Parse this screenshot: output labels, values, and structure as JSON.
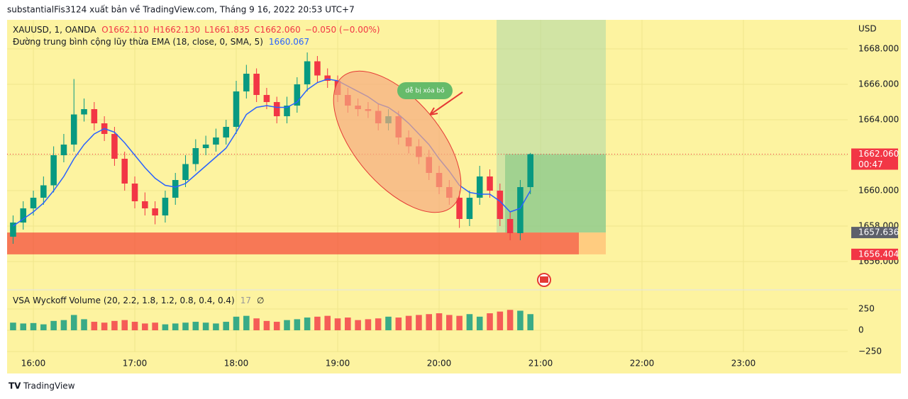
{
  "chart_data": {
    "type": "candlestick",
    "header": "substantialFis3124 xuất bản về TradingView.com, Tháng 9 16, 2022 20:53 UTC+7",
    "symbol": "XAUUSD, 1, OANDA",
    "ohlc_labels": [
      "O1662.110",
      "H1662.130",
      "L1661.835",
      "C1662.060"
    ],
    "change": "−0.050 (−0.00%)",
    "currency": "USD",
    "up_color": "#089981",
    "down_color": "#f23645",
    "background": "#fdf3a0",
    "x": [
      15.8,
      15.9,
      16.0,
      16.1,
      16.2,
      16.3,
      16.4,
      16.5,
      16.6,
      16.7,
      16.8,
      16.9,
      17.0,
      17.1,
      17.2,
      17.3,
      17.4,
      17.5,
      17.6,
      17.7,
      17.8,
      17.9,
      18.0,
      18.1,
      18.2,
      18.3,
      18.4,
      18.5,
      18.6,
      18.7,
      18.8,
      18.9,
      19.0,
      19.1,
      19.2,
      19.3,
      19.4,
      19.5,
      19.6,
      19.7,
      19.8,
      19.9,
      20.0,
      20.1,
      20.2,
      20.3,
      20.4,
      20.5,
      20.6,
      20.7,
      20.8,
      20.9
    ],
    "open": [
      1657.4,
      1658.2,
      1659.0,
      1659.6,
      1660.3,
      1662.0,
      1662.6,
      1664.3,
      1664.6,
      1663.8,
      1663.2,
      1661.8,
      1660.4,
      1659.4,
      1659.0,
      1658.6,
      1659.6,
      1660.6,
      1661.5,
      1662.4,
      1662.6,
      1663.0,
      1663.6,
      1665.6,
      1666.6,
      1665.4,
      1665.0,
      1664.2,
      1664.8,
      1666.0,
      1667.3,
      1666.5,
      1666.2,
      1665.4,
      1664.8,
      1664.6,
      1664.5,
      1663.8,
      1664.2,
      1663.0,
      1662.5,
      1661.9,
      1661.0,
      1660.2,
      1659.6,
      1658.4,
      1659.6,
      1660.8,
      1660.0,
      1658.4,
      1657.6,
      1660.2
    ],
    "high": [
      1658.6,
      1659.4,
      1660.0,
      1660.8,
      1662.5,
      1663.2,
      1666.3,
      1665.2,
      1665.0,
      1664.2,
      1663.6,
      1662.2,
      1660.8,
      1659.9,
      1659.4,
      1660.0,
      1661.0,
      1662.0,
      1662.9,
      1663.1,
      1663.5,
      1664.0,
      1666.2,
      1667.1,
      1666.9,
      1665.8,
      1665.3,
      1665.3,
      1666.4,
      1667.8,
      1667.6,
      1666.9,
      1666.5,
      1665.8,
      1665.2,
      1665.0,
      1664.9,
      1664.6,
      1664.5,
      1663.4,
      1662.9,
      1662.3,
      1661.4,
      1660.6,
      1660.0,
      1660.0,
      1661.4,
      1661.2,
      1660.4,
      1658.8,
      1660.6,
      1662.13
    ],
    "low": [
      1657.0,
      1657.8,
      1658.6,
      1659.2,
      1659.9,
      1661.6,
      1662.2,
      1663.9,
      1663.4,
      1662.8,
      1661.4,
      1660.0,
      1659.0,
      1658.6,
      1658.1,
      1658.2,
      1659.2,
      1660.2,
      1661.1,
      1662.0,
      1662.2,
      1662.6,
      1663.2,
      1665.2,
      1665.0,
      1664.6,
      1663.8,
      1663.8,
      1664.4,
      1665.6,
      1666.1,
      1665.8,
      1665.0,
      1664.4,
      1664.2,
      1664.1,
      1663.4,
      1663.4,
      1662.6,
      1662.1,
      1661.5,
      1660.6,
      1659.8,
      1659.2,
      1657.9,
      1658.0,
      1659.2,
      1659.6,
      1658.0,
      1657.2,
      1657.2,
      1659.8
    ],
    "close": [
      1658.2,
      1659.0,
      1659.6,
      1660.3,
      1662.0,
      1662.6,
      1664.3,
      1664.6,
      1663.8,
      1663.2,
      1661.8,
      1660.4,
      1659.4,
      1659.0,
      1658.6,
      1659.6,
      1660.6,
      1661.5,
      1662.4,
      1662.6,
      1663.0,
      1663.6,
      1665.6,
      1666.6,
      1665.4,
      1665.0,
      1664.2,
      1664.8,
      1666.0,
      1667.3,
      1666.5,
      1666.2,
      1665.4,
      1664.8,
      1664.6,
      1664.5,
      1663.8,
      1664.2,
      1663.0,
      1662.5,
      1661.9,
      1661.0,
      1660.2,
      1659.6,
      1658.4,
      1659.6,
      1660.8,
      1660.0,
      1658.4,
      1657.6,
      1660.2,
      1662.06
    ],
    "series": [
      {
        "name": "Đường trung bình cộng lũy thừa EMA (18, close, 0, SMA, 5)",
        "color": "#2962ff",
        "last_label": "1660.067",
        "values": [
          1658.0,
          1658.4,
          1658.8,
          1659.3,
          1660.0,
          1660.8,
          1661.8,
          1662.6,
          1663.2,
          1663.5,
          1663.3,
          1662.7,
          1662.0,
          1661.3,
          1660.7,
          1660.3,
          1660.2,
          1660.4,
          1660.9,
          1661.4,
          1661.9,
          1662.4,
          1663.3,
          1664.3,
          1664.7,
          1664.8,
          1664.7,
          1664.7,
          1665.0,
          1665.7,
          1666.1,
          1666.3,
          1666.2,
          1665.9,
          1665.6,
          1665.3,
          1664.9,
          1664.7,
          1664.3,
          1663.8,
          1663.2,
          1662.6,
          1661.8,
          1661.1,
          1660.3,
          1659.9,
          1659.8,
          1659.8,
          1659.4,
          1658.8,
          1659.0,
          1660.0
        ]
      }
    ],
    "xlim": [
      15.741,
      24.028
    ],
    "xticks": [
      {
        "value": 16,
        "label": "16:00"
      },
      {
        "value": 17,
        "label": "17:00"
      },
      {
        "value": 18,
        "label": "18:00"
      },
      {
        "value": 19,
        "label": "19:00"
      },
      {
        "value": 20,
        "label": "20:00"
      },
      {
        "value": 21,
        "label": "21:00"
      },
      {
        "value": 22,
        "label": "22:00"
      },
      {
        "value": 23,
        "label": "23:00"
      }
    ],
    "ylim": [
      1654.44,
      1669.64
    ],
    "yticks": [
      {
        "value": 1656,
        "label": "1656.000"
      },
      {
        "value": 1658,
        "label": "1658.000"
      },
      {
        "value": 1660,
        "label": "1660.000"
      },
      {
        "value": 1662,
        "label": "1662.000"
      },
      {
        "value": 1664,
        "label": "1664.000"
      },
      {
        "value": 1666,
        "label": "1666.000"
      },
      {
        "value": 1668,
        "label": "1668.000"
      }
    ],
    "grid": true,
    "price_labels": [
      {
        "value": 1662.06,
        "label": "1662.060",
        "countdown": "00:47",
        "color": "#f23645"
      },
      {
        "value": 1657.636,
        "label": "1657.636",
        "color": "#5d606b"
      },
      {
        "value": 1656.404,
        "label": "1656.404",
        "color": "#f23645"
      }
    ],
    "annotation": "dễ bị xóa bỏ",
    "volume": {
      "title": "VSA Wyckoff Volume (20, 2.2, 1.8, 1.2, 0.8, 0.4, 0.4)",
      "extra": [
        "17",
        "∅"
      ],
      "values": [
        90,
        80,
        85,
        70,
        110,
        120,
        180,
        130,
        100,
        90,
        110,
        120,
        100,
        80,
        90,
        70,
        80,
        90,
        100,
        90,
        80,
        100,
        160,
        170,
        140,
        110,
        100,
        120,
        130,
        150,
        160,
        170,
        140,
        150,
        120,
        130,
        140,
        160,
        150,
        170,
        180,
        190,
        200,
        180,
        170,
        190,
        160,
        200,
        220,
        240,
        230,
        190
      ],
      "ylim": [
        -508,
        467
      ],
      "yticks": [
        250,
        0,
        {
          "value": -250,
          "label": "−250"
        }
      ]
    },
    "footer": "TradingView"
  }
}
